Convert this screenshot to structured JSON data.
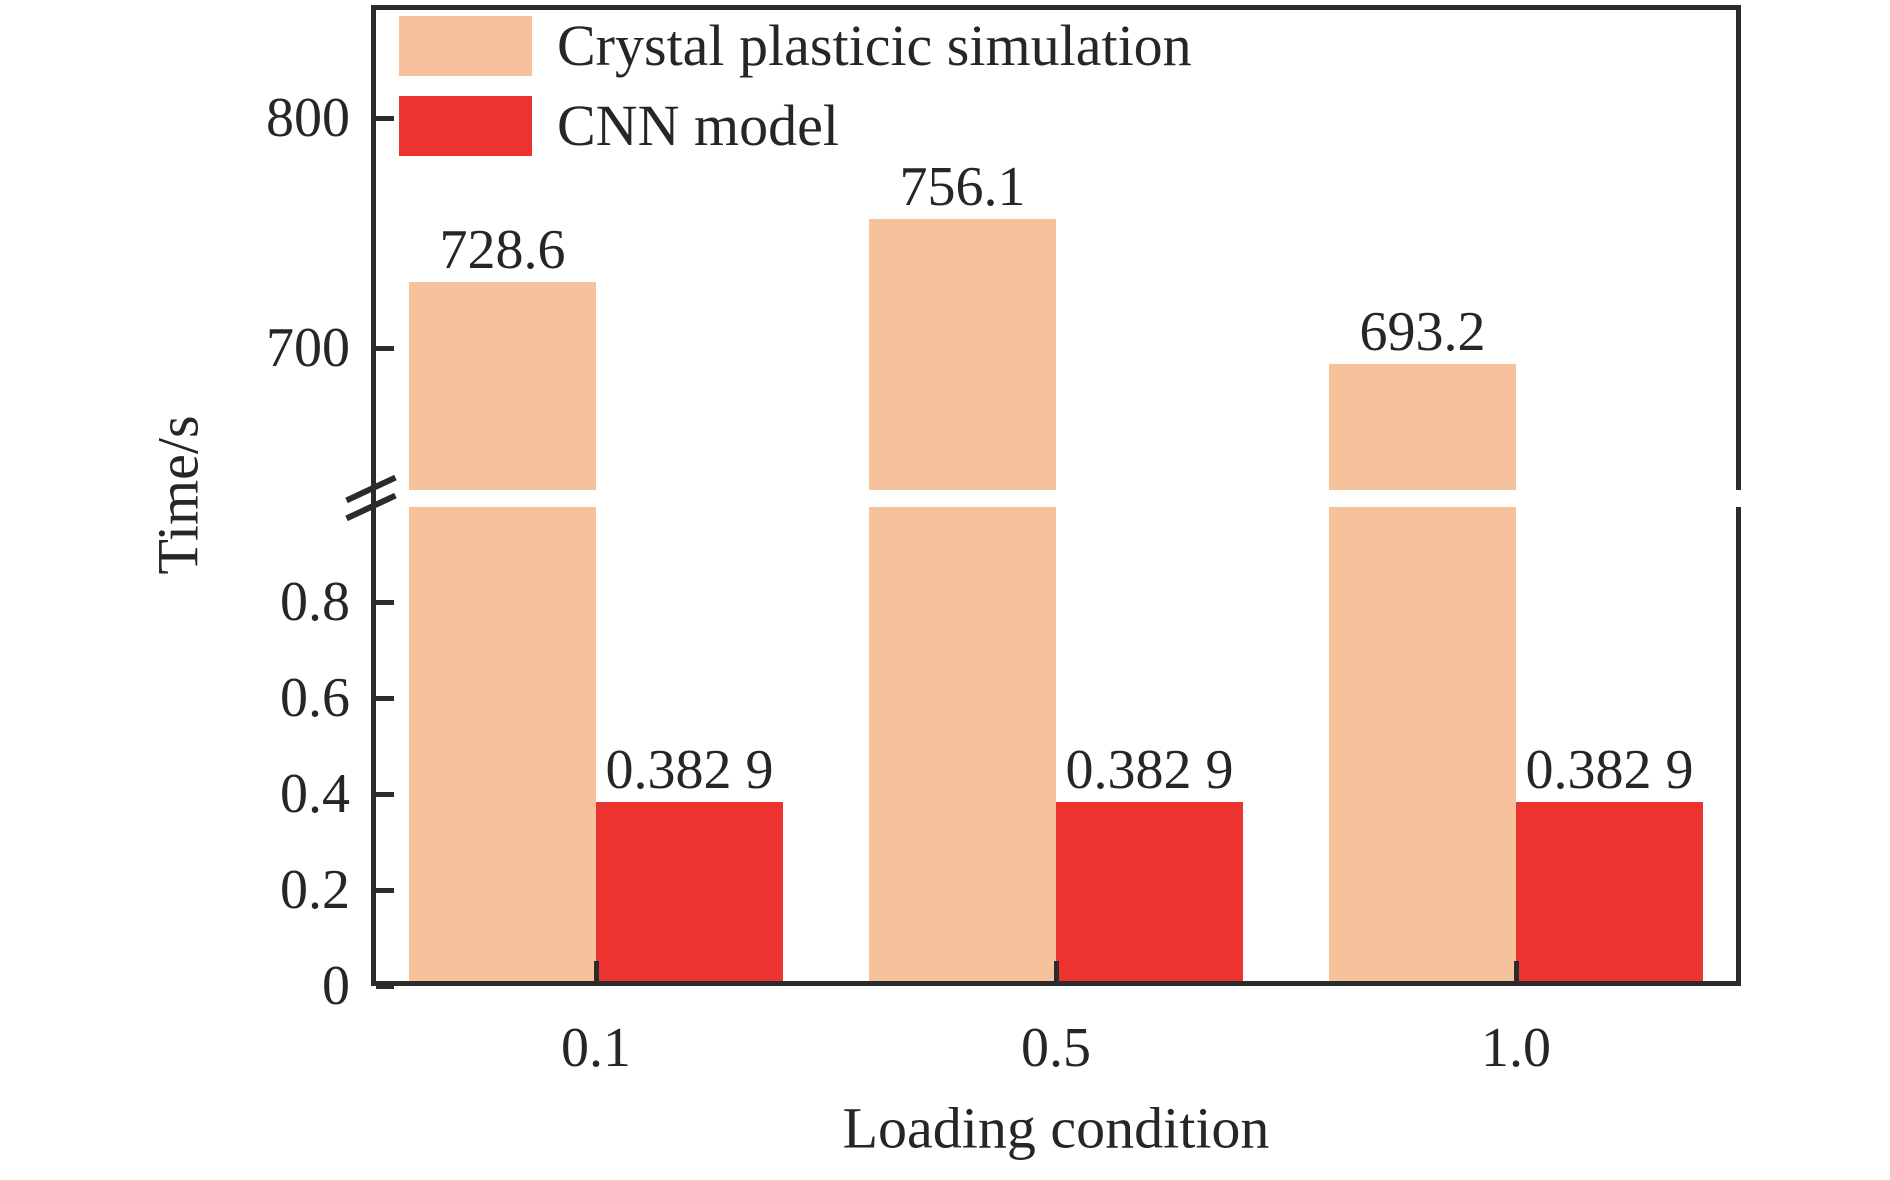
{
  "chart_data": {
    "type": "bar",
    "title": "",
    "xlabel": "Loading condition",
    "ylabel": "Time/s",
    "categories": [
      "0.1",
      "0.5",
      "1.0"
    ],
    "series": [
      {
        "name": "Crystal plasticic simulation",
        "color": "#F5C29C",
        "values": [
          728.6,
          756.1,
          693.2
        ],
        "value_labels": [
          "728.6",
          "756.1",
          "693.2"
        ]
      },
      {
        "name": "CNN model",
        "color": "#ED332F",
        "values": [
          0.3829,
          0.3829,
          0.3829
        ],
        "value_labels": [
          "0.382 9",
          "0.382 9",
          "0.382 9"
        ]
      }
    ],
    "y_axis": {
      "broken": true,
      "lower_segment": {
        "range": [
          0,
          1.03
        ],
        "ticks": [
          0,
          0.2,
          0.4,
          0.6,
          0.8
        ],
        "tick_labels": [
          "0",
          "0.2",
          "0.4",
          "0.6",
          "0.8"
        ]
      },
      "upper_segment": {
        "range": [
          650,
          849
        ],
        "ticks": [
          700,
          800
        ],
        "tick_labels": [
          "700",
          "800"
        ]
      }
    },
    "legend_position": "upper left",
    "grid": false,
    "frame_color": "#2b2b2b",
    "text_color": "#262626"
  }
}
